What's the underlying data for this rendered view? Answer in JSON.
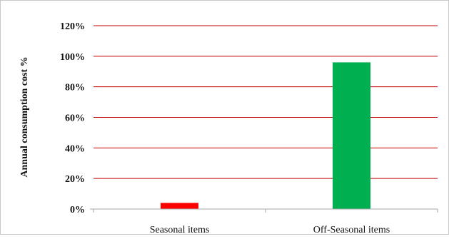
{
  "chart_data": {
    "type": "bar",
    "categories": [
      "Seasonal items",
      "Off-Seasonal items"
    ],
    "values": [
      4,
      96
    ],
    "bar_colors": [
      "#ff0000",
      "#00b050"
    ],
    "ylabel": "Annual consumption cost %",
    "ylim": [
      0,
      120
    ],
    "y_ticks": [
      0,
      20,
      40,
      60,
      80,
      100,
      120
    ],
    "y_tick_labels": [
      "0%",
      "20%",
      "40%",
      "60%",
      "80%",
      "100%",
      "120%"
    ],
    "grid": true,
    "grid_color": "#c00000",
    "legend": "none"
  }
}
